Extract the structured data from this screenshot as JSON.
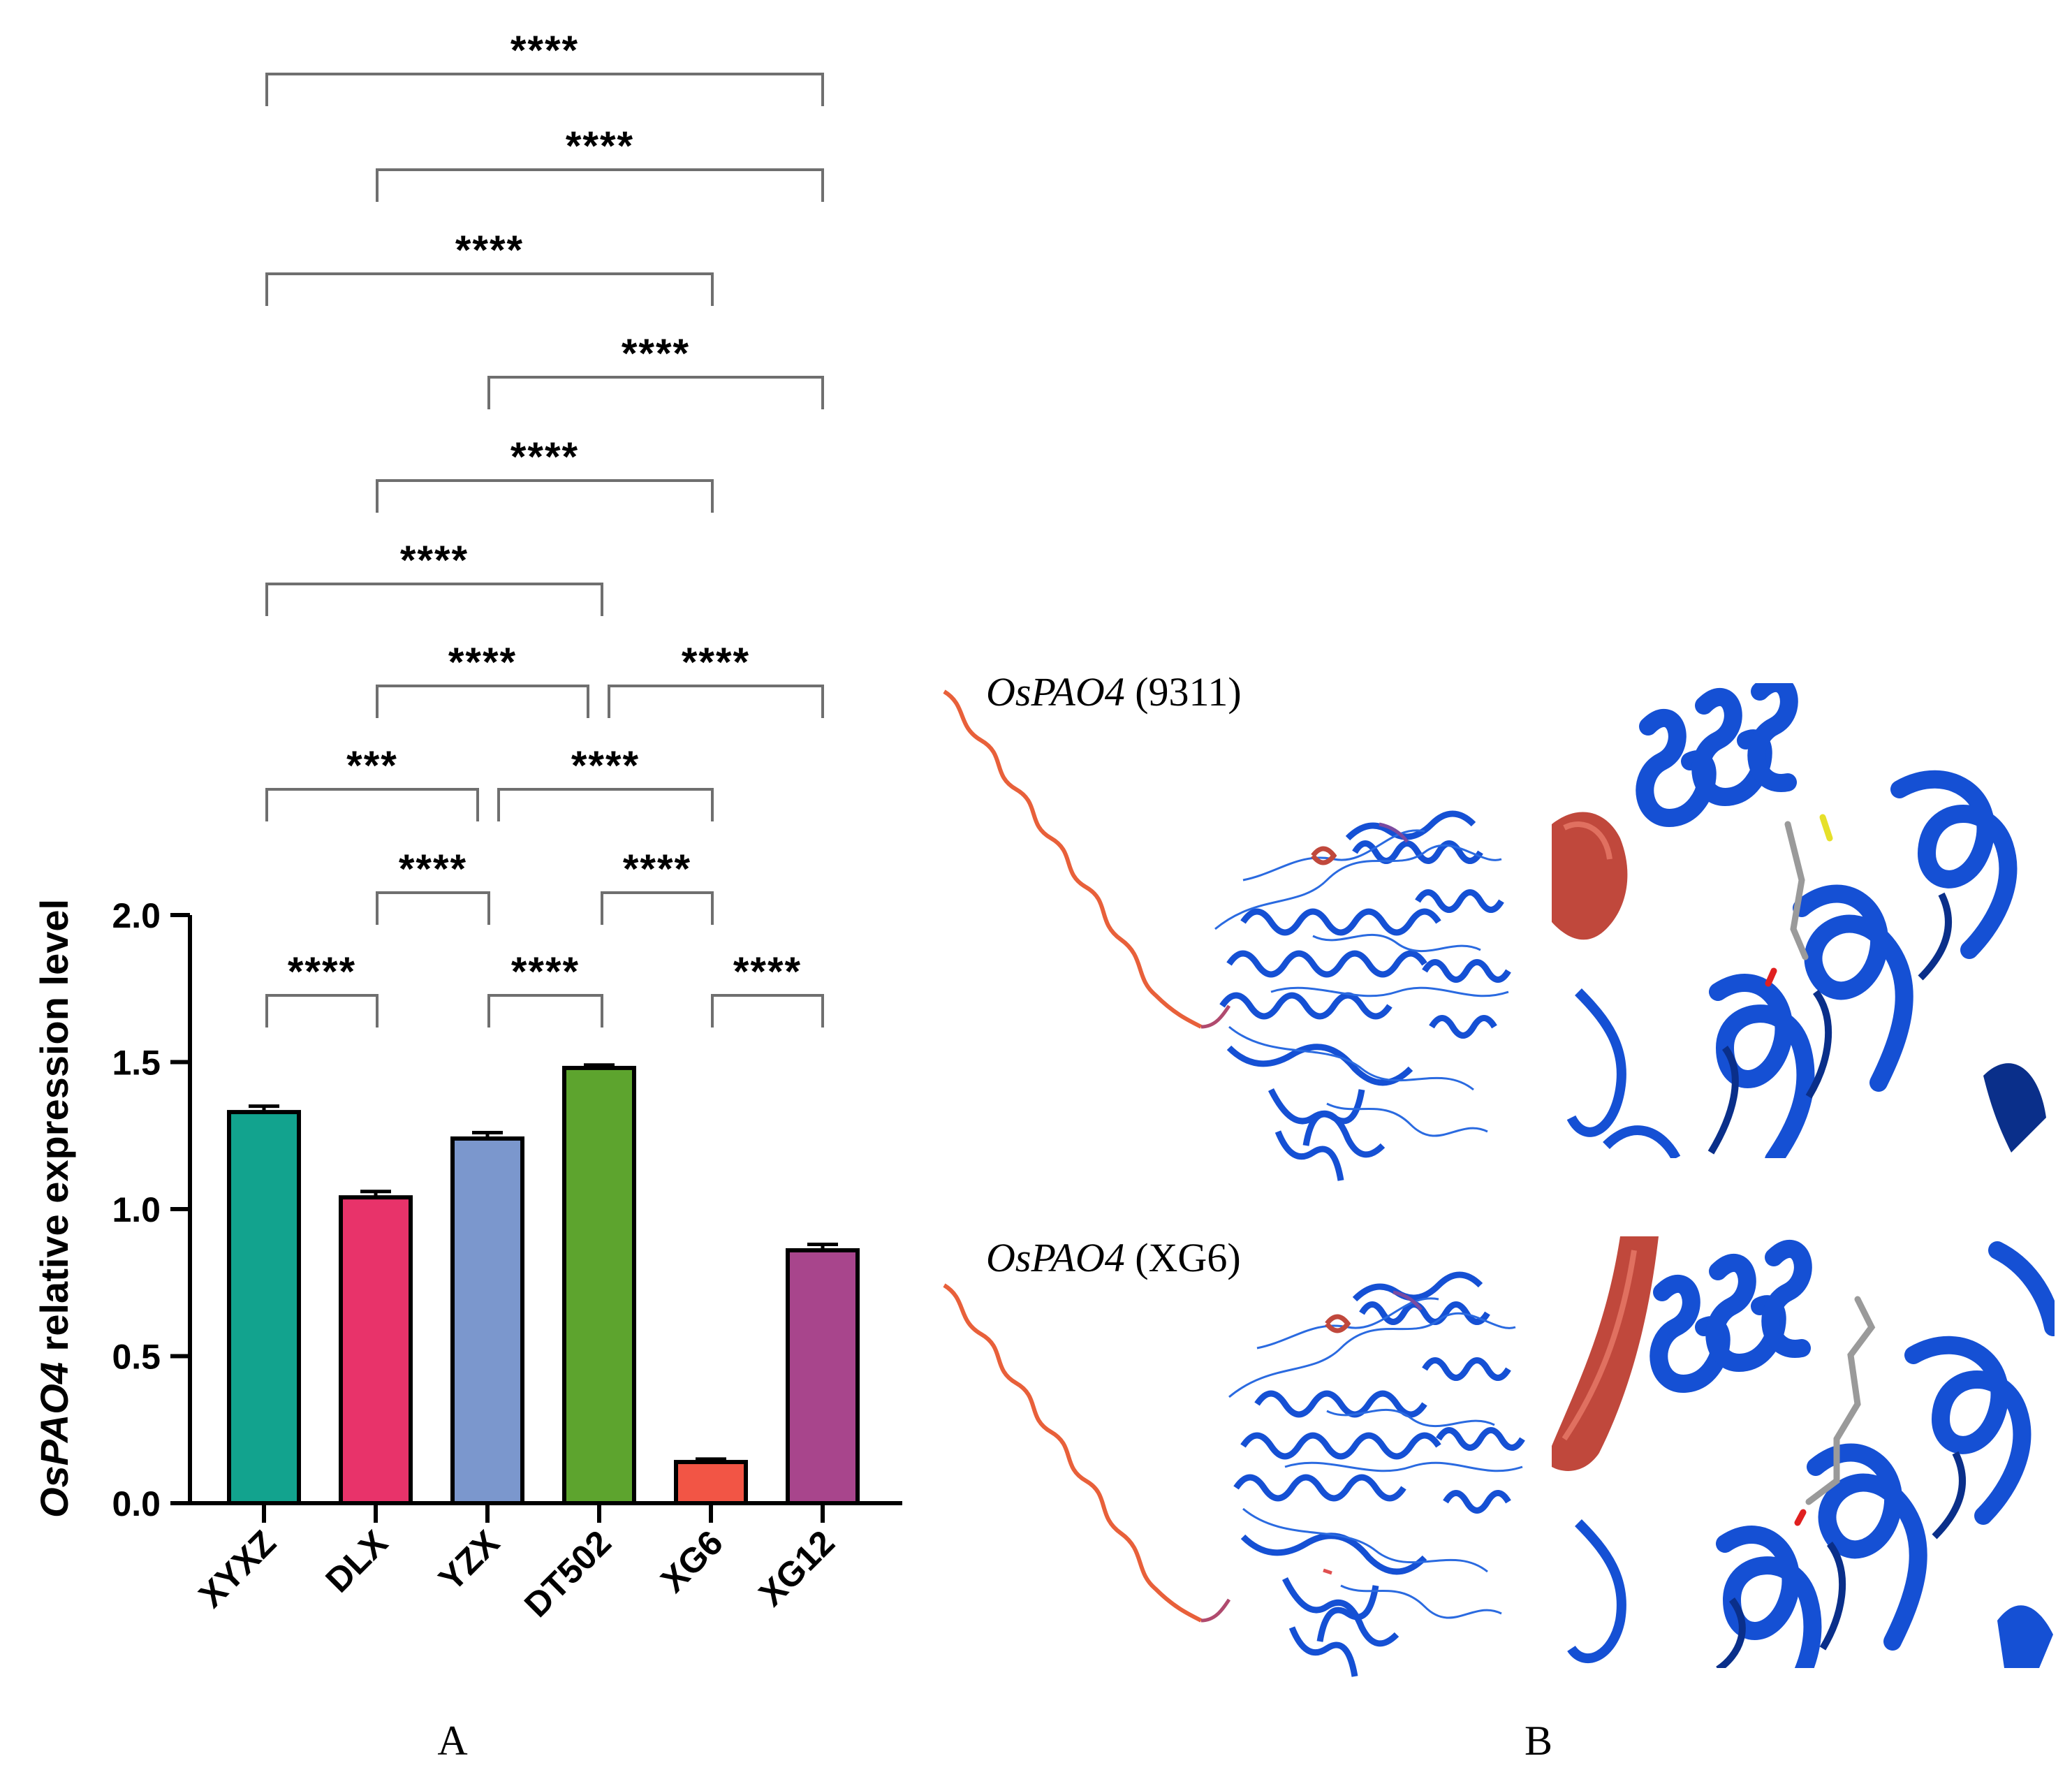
{
  "panel_a": {
    "letter": "A",
    "chart_data": {
      "type": "bar",
      "categories": [
        "XYXZ",
        "DLX",
        "YZX",
        "DT502",
        "XG6",
        "XG12"
      ],
      "values": [
        1.33,
        1.04,
        1.24,
        1.48,
        0.14,
        0.86
      ],
      "errors": [
        0.02,
        0.02,
        0.02,
        0.01,
        0.01,
        0.02
      ],
      "colors": [
        "#12a38e",
        "#e8336a",
        "#7b97cd",
        "#5da42e",
        "#f25545",
        "#a8458c"
      ],
      "ylabel": {
        "gene": "OsPAO4",
        "rest": " relative expression level"
      },
      "ylim": [
        0,
        2.0
      ],
      "yticks": [
        "0.0",
        "0.5",
        "1.0",
        "1.5",
        "2.0"
      ],
      "significance": [
        {
          "from": 0,
          "to": 5,
          "label": "****"
        },
        {
          "from": 1,
          "to": 5,
          "label": "****"
        },
        {
          "from": 0,
          "to": 4,
          "label": "****"
        },
        {
          "from": 2,
          "to": 5,
          "label": "****"
        },
        {
          "from": 1,
          "to": 4,
          "label": "****"
        },
        {
          "from": 0,
          "to": 3,
          "label": "****"
        },
        {
          "from": 1,
          "to": 3,
          "label": "****"
        },
        {
          "from": 3,
          "to": 5,
          "label": "****"
        },
        {
          "from": 0,
          "to": 2,
          "label": "***"
        },
        {
          "from": 2,
          "to": 4,
          "label": "****"
        },
        {
          "from": 1,
          "to": 2,
          "label": "****"
        },
        {
          "from": 3,
          "to": 4,
          "label": "****"
        },
        {
          "from": 0,
          "to": 1,
          "label": "****"
        },
        {
          "from": 2,
          "to": 3,
          "label": "****"
        },
        {
          "from": 4,
          "to": 5,
          "label": "****"
        }
      ]
    }
  },
  "panel_b": {
    "letter": "B",
    "top_label": {
      "gene": "OsPAO4",
      "strain": " (9311)"
    },
    "bottom_label": {
      "gene": "OsPAO4",
      "strain": " (XG6)"
    }
  },
  "colors": {
    "helix_blue": "#1550d4",
    "helix_dark": "#0a2f8a",
    "loop_red": "#c0483c",
    "tail_orange": "#e8603a"
  }
}
